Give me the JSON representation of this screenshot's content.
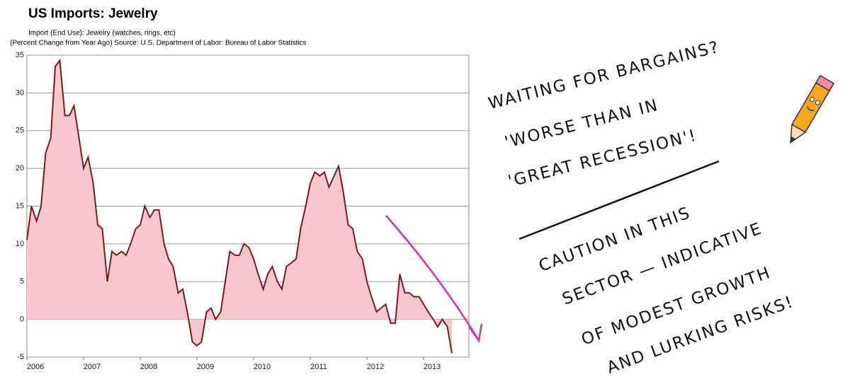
{
  "chart_data": {
    "type": "area",
    "title": "US Imports:  Jewelry",
    "subtitle": [
      "Import (End Use): Jewelry (watches, rings, etc)",
      "(Percent Change from Year Ago)  Source: U.S. Department of Labor: Bureau of Labor Statistics"
    ],
    "x": [
      2006.0,
      2006.08,
      2006.17,
      2006.25,
      2006.33,
      2006.42,
      2006.5,
      2006.58,
      2006.67,
      2006.75,
      2006.83,
      2006.92,
      2007.0,
      2007.08,
      2007.17,
      2007.25,
      2007.33,
      2007.42,
      2007.5,
      2007.58,
      2007.67,
      2007.75,
      2007.83,
      2007.92,
      2008.0,
      2008.08,
      2008.17,
      2008.25,
      2008.33,
      2008.42,
      2008.5,
      2008.58,
      2008.67,
      2008.75,
      2008.83,
      2008.92,
      2009.0,
      2009.08,
      2009.17,
      2009.25,
      2009.33,
      2009.42,
      2009.5,
      2009.58,
      2009.67,
      2009.75,
      2009.83,
      2009.92,
      2010.0,
      2010.08,
      2010.17,
      2010.25,
      2010.33,
      2010.42,
      2010.5,
      2010.58,
      2010.67,
      2010.75,
      2010.83,
      2010.92,
      2011.0,
      2011.08,
      2011.17,
      2011.25,
      2011.33,
      2011.42,
      2011.5,
      2011.58,
      2011.67,
      2011.75,
      2011.83,
      2011.92,
      2012.0,
      2012.08,
      2012.17,
      2012.25,
      2012.33,
      2012.42,
      2012.5,
      2012.58,
      2012.67,
      2012.75,
      2012.83,
      2012.92,
      2013.0,
      2013.08,
      2013.17,
      2013.25,
      2013.33,
      2013.42,
      2013.5
    ],
    "series": [
      {
        "name": "Import (End Use): Jewelry",
        "color": "#7a1b1b",
        "fill": "#f8c6cd",
        "values": [
          10.5,
          15,
          13,
          15,
          22,
          24,
          33.5,
          34.3,
          27,
          27,
          28.3,
          24,
          20,
          21.5,
          18,
          12.5,
          12,
          5,
          9,
          8.5,
          9,
          8.5,
          10,
          12,
          12.5,
          15,
          13.5,
          14.5,
          14.5,
          10,
          8,
          7,
          3.5,
          4,
          1,
          -3,
          -3.5,
          -3,
          1,
          1.5,
          0,
          1,
          5,
          9,
          8.5,
          8.5,
          10,
          9.5,
          8,
          6,
          4,
          6,
          7,
          5,
          4,
          7,
          7.5,
          8,
          12,
          15,
          18,
          19.5,
          19,
          19.5,
          17.5,
          19,
          20.3,
          17,
          12.5,
          12,
          9,
          8,
          5,
          3,
          1,
          1.5,
          2,
          -0.5,
          -0.5,
          6,
          3.5,
          3.5,
          3,
          3,
          2,
          1,
          0,
          -1,
          0,
          -1,
          -4.5
        ]
      }
    ],
    "xlim": [
      2006,
      2013.8
    ],
    "xticks": [
      2006,
      2007,
      2008,
      2009,
      2010,
      2011,
      2012,
      2013
    ],
    "ylim": [
      -5,
      35
    ],
    "yticks": [
      -5,
      0,
      5,
      10,
      15,
      20,
      25,
      30,
      35
    ],
    "grid": true,
    "annotations": [
      "WAITING FOR BARGAINS?",
      "'WORSE THAN IN",
      "'GREAT RECESSION'!",
      "CAUTION IN THIS",
      "SECTOR  — INDICATIVE",
      "OF MODEST GROWTH",
      "AND LURKING RISKS!"
    ]
  }
}
